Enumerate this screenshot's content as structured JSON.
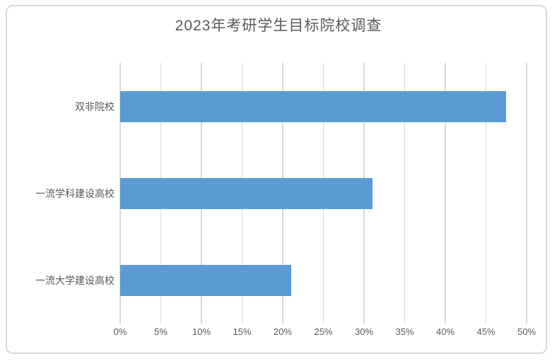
{
  "chart_data": {
    "type": "bar",
    "orientation": "horizontal",
    "title": "2023年考研学生目标院校调查",
    "categories": [
      "双非院校",
      "一流学科建设高校",
      "一流大学建设高校"
    ],
    "values": [
      47.5,
      31,
      21
    ],
    "unit": "%",
    "xlabel": "",
    "ylabel": "",
    "xlim": [
      0,
      50
    ],
    "xtick_values": [
      0,
      5,
      10,
      15,
      20,
      25,
      30,
      35,
      40,
      45,
      50
    ],
    "xtick_labels": [
      "0%",
      "5%",
      "10%",
      "15%",
      "20%",
      "25%",
      "30%",
      "35%",
      "40%",
      "45%",
      "50%"
    ],
    "grid": true,
    "legend": false,
    "colors": {
      "bar": "#5B9BD5",
      "gridline": "#D9D9D9",
      "text": "#595959",
      "border": "#D9D9D9",
      "background": "#FFFFFF"
    }
  }
}
